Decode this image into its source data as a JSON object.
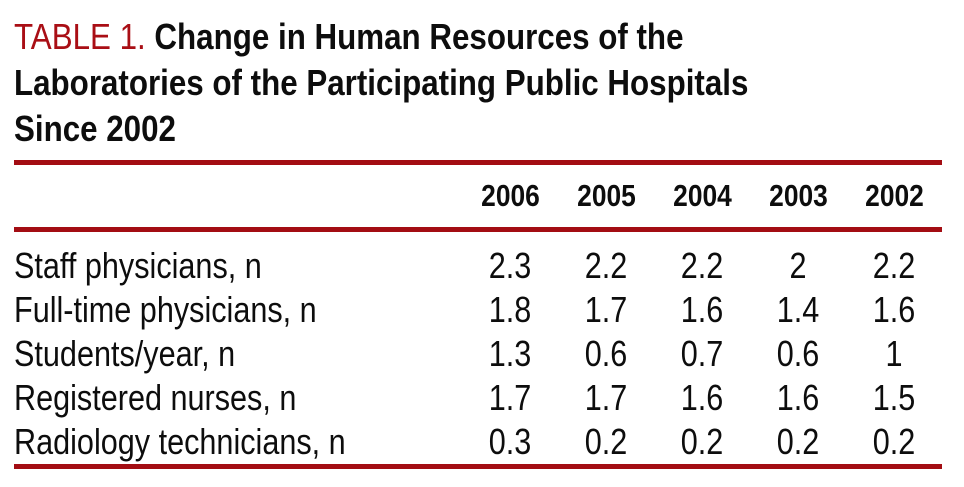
{
  "title": {
    "label": "TABLE 1.",
    "lines": [
      "Change in Human Resources of the",
      "Laboratories of the Participating Public Hospitals",
      "Since 2002"
    ]
  },
  "table": {
    "columns": [
      "2006",
      "2005",
      "2004",
      "2003",
      "2002"
    ],
    "rows": [
      {
        "label": "Staff physicians, n",
        "values": [
          "2.3",
          "2.2",
          "2.2",
          "2",
          "2.2"
        ]
      },
      {
        "label": "Full-time physicians, n",
        "values": [
          "1.8",
          "1.7",
          "1.6",
          "1.4",
          "1.6"
        ]
      },
      {
        "label": "Students/year, n",
        "values": [
          "1.3",
          "0.6",
          "0.7",
          "0.6",
          "1"
        ]
      },
      {
        "label": "Registered nurses, n",
        "values": [
          "1.7",
          "1.7",
          "1.6",
          "1.6",
          "1.5"
        ]
      },
      {
        "label": "Radiology technicians, n",
        "values": [
          "0.3",
          "0.2",
          "0.2",
          "0.2",
          "0.2"
        ]
      }
    ]
  },
  "colors": {
    "accent_red": "#a90e15",
    "rule_red": "#a30d13",
    "text": "#0d0d0d",
    "background": "#ffffff"
  }
}
